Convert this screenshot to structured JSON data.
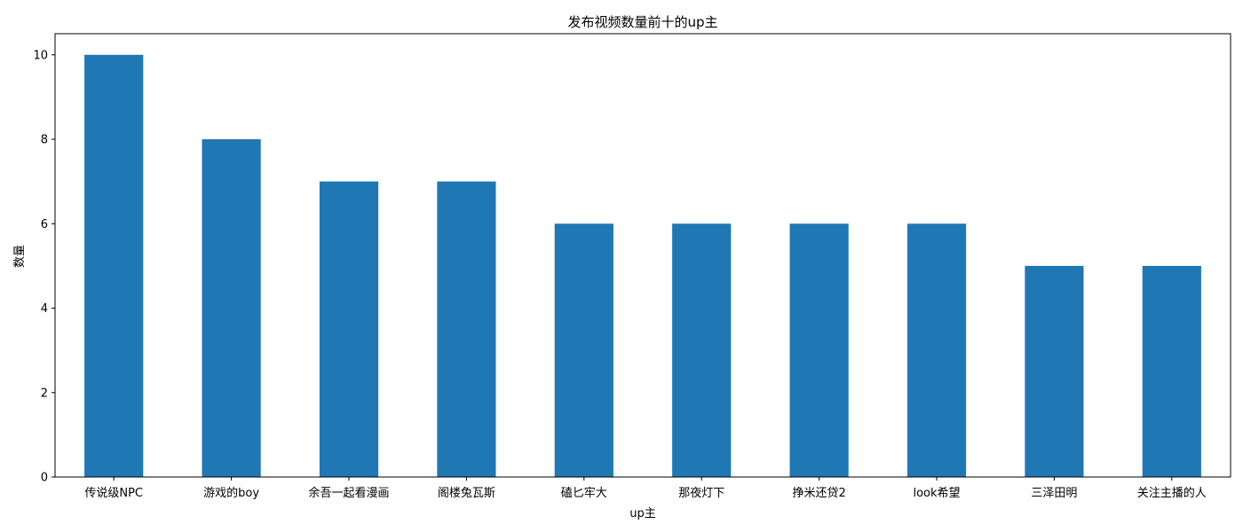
{
  "chart_data": {
    "type": "bar",
    "title": "发布视频数量前十的up主",
    "xlabel": "up主",
    "ylabel": "数量",
    "categories": [
      "传说级NPC",
      "游戏的boy",
      "余吾一起看漫画",
      "阁楼兔瓦斯",
      "磕匕牢大",
      "那夜灯下",
      "挣米还贷2",
      "look希望",
      "三泽田明",
      "关注主播的人"
    ],
    "values": [
      10,
      8,
      7,
      7,
      6,
      6,
      6,
      6,
      5,
      5
    ],
    "ylim": [
      0,
      10.5
    ],
    "yticks": [
      0,
      2,
      4,
      6,
      8,
      10
    ],
    "grid": false,
    "legend": "none",
    "bar_color": "#1f77b4"
  }
}
